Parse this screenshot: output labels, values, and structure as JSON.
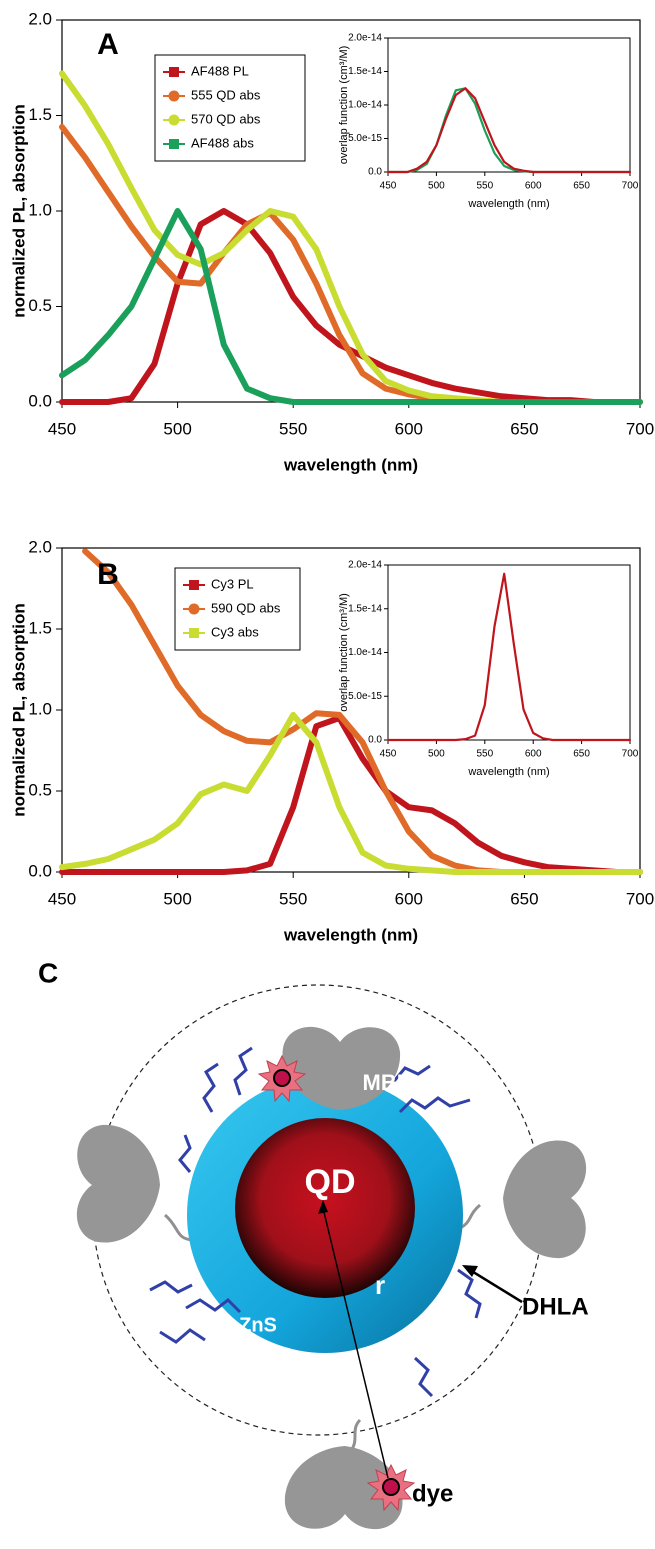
{
  "chart_data": [
    {
      "type": "line",
      "panel": "A",
      "xlabel": "wavelength (nm)",
      "ylabel": "normalized PL, absorption",
      "x": [
        450,
        460,
        470,
        480,
        490,
        500,
        510,
        520,
        530,
        540,
        550,
        560,
        570,
        580,
        590,
        600,
        610,
        620,
        630,
        640,
        650,
        660,
        670,
        680,
        690,
        700
      ],
      "xlim": [
        450,
        700
      ],
      "xticks": [
        450,
        500,
        550,
        600,
        650,
        700
      ],
      "ylim": [
        0,
        2
      ],
      "yticks": [
        {
          "value": 0,
          "label": "0.0"
        },
        0.5,
        {
          "value": 1,
          "label": "1.0"
        },
        1.5,
        {
          "value": 2,
          "label": "2.0"
        }
      ],
      "series": [
        {
          "name": "AF488 PL",
          "color": "#c0151c",
          "marker": "square",
          "values": [
            0,
            0,
            0,
            0.02,
            0.2,
            0.62,
            0.93,
            1.0,
            0.93,
            0.78,
            0.55,
            0.4,
            0.3,
            0.24,
            0.18,
            0.14,
            0.1,
            0.07,
            0.05,
            0.03,
            0.02,
            0.01,
            0.01,
            0,
            0,
            0
          ]
        },
        {
          "name": "555 QD abs",
          "color": "#e06a28",
          "marker": "circle",
          "values": [
            1.44,
            1.28,
            1.1,
            0.92,
            0.76,
            0.63,
            0.62,
            0.78,
            0.93,
            0.99,
            0.85,
            0.62,
            0.35,
            0.15,
            0.07,
            0.04,
            0.02,
            0.01,
            0,
            0,
            0,
            0,
            0,
            0,
            0,
            0
          ]
        },
        {
          "name": "570 QD abs",
          "color": "#c8dc32",
          "marker": "circle",
          "values": [
            1.72,
            1.55,
            1.35,
            1.12,
            0.9,
            0.77,
            0.72,
            0.78,
            0.9,
            1.0,
            0.97,
            0.8,
            0.5,
            0.25,
            0.11,
            0.06,
            0.03,
            0.02,
            0.01,
            0,
            0,
            0,
            0,
            0,
            0,
            0
          ]
        },
        {
          "name": "AF488 abs",
          "color": "#1aa05a",
          "marker": "square",
          "values": [
            0.14,
            0.22,
            0.35,
            0.5,
            0.75,
            1.0,
            0.8,
            0.3,
            0.07,
            0.02,
            0,
            0,
            0,
            0,
            0,
            0,
            0,
            0,
            0,
            0,
            0,
            0,
            0,
            0,
            0,
            0
          ]
        }
      ]
    },
    {
      "type": "line",
      "xlabel": "wavelength (nm)",
      "ylabel": "overlap function (cm³/M)",
      "x": [
        450,
        460,
        470,
        480,
        490,
        500,
        510,
        520,
        530,
        540,
        550,
        560,
        570,
        580,
        590,
        600,
        610,
        620,
        630,
        640,
        650,
        660,
        670,
        680,
        690,
        700
      ],
      "xlim": [
        450,
        700
      ],
      "xticks": [
        450,
        500,
        550,
        600,
        650,
        700
      ],
      "ylim": [
        0,
        2e-14
      ],
      "yticks": [
        {
          "value": 0,
          "label": "0.0"
        },
        {
          "value": 5e-15,
          "label": "5.0e-15"
        },
        {
          "value": 1e-14,
          "label": "1.0e-14"
        },
        {
          "value": 1.5e-14,
          "label": "1.5e-14"
        },
        {
          "value": 2e-14,
          "label": "2.0e-14"
        }
      ],
      "series": [
        {
          "color": "#1aa05a",
          "values": [
            0,
            0,
            0,
            3e-16,
            1.2e-15,
            4e-15,
            8.5e-15,
            1.22e-14,
            1.25e-14,
            1.02e-14,
            6.2e-15,
            2.8e-15,
            9e-16,
            3e-16,
            1e-16,
            0,
            0,
            0,
            0,
            0,
            0,
            0,
            0,
            0,
            0,
            0
          ]
        },
        {
          "color": "#c0151c",
          "values": [
            0,
            0,
            0,
            5e-16,
            1.5e-15,
            4e-15,
            8e-15,
            1.15e-14,
            1.25e-14,
            1.1e-14,
            7.5e-15,
            4e-15,
            1.5e-15,
            5e-16,
            2e-16,
            0,
            0,
            0,
            0,
            0,
            0,
            0,
            0,
            0,
            0,
            0
          ]
        }
      ]
    },
    {
      "type": "line",
      "panel": "B",
      "xlabel": "wavelength (nm)",
      "ylabel": "normalized PL, absorption",
      "x": [
        450,
        460,
        470,
        480,
        490,
        500,
        510,
        520,
        530,
        540,
        550,
        560,
        570,
        580,
        590,
        600,
        610,
        620,
        630,
        640,
        650,
        660,
        670,
        680,
        690,
        700
      ],
      "xlim": [
        450,
        700
      ],
      "xticks": [
        450,
        500,
        550,
        600,
        650,
        700
      ],
      "ylim": [
        0,
        2
      ],
      "yticks": [
        {
          "value": 0,
          "label": "0.0"
        },
        0.5,
        {
          "value": 1,
          "label": "1.0"
        },
        1.5,
        {
          "value": 2,
          "label": "2.0"
        }
      ],
      "series": [
        {
          "name": "Cy3 PL",
          "color": "#c0151c",
          "marker": "square",
          "values": [
            0,
            0,
            0,
            0,
            0,
            0,
            0,
            0,
            0.01,
            0.05,
            0.4,
            0.9,
            0.95,
            0.7,
            0.5,
            0.4,
            0.38,
            0.3,
            0.18,
            0.1,
            0.06,
            0.03,
            0.02,
            0.01,
            0,
            0
          ]
        },
        {
          "name": "590 QD abs",
          "color": "#e06a28",
          "marker": "circle",
          "values": [
            null,
            1.98,
            1.85,
            1.65,
            1.4,
            1.15,
            0.97,
            0.87,
            0.81,
            0.8,
            0.88,
            0.98,
            0.97,
            0.8,
            0.5,
            0.25,
            0.1,
            0.04,
            0.01,
            0,
            0,
            0,
            0,
            0,
            0,
            0
          ]
        },
        {
          "name": "Cy3 abs",
          "color": "#c8dc32",
          "marker": "square",
          "values": [
            0.03,
            0.05,
            0.08,
            0.14,
            0.2,
            0.3,
            0.48,
            0.54,
            0.5,
            0.72,
            0.97,
            0.8,
            0.4,
            0.12,
            0.04,
            0.02,
            0.01,
            0,
            0,
            0,
            0,
            0,
            0,
            0,
            0,
            0
          ]
        }
      ]
    },
    {
      "type": "line",
      "xlabel": "wavelength (nm)",
      "ylabel": "overlap function (cm³/M)",
      "x": [
        450,
        460,
        470,
        480,
        490,
        500,
        510,
        520,
        530,
        540,
        550,
        560,
        570,
        580,
        590,
        600,
        610,
        620,
        630,
        640,
        650,
        660,
        670,
        680,
        690,
        700
      ],
      "xlim": [
        450,
        700
      ],
      "xticks": [
        450,
        500,
        550,
        600,
        650,
        700
      ],
      "ylim": [
        0,
        2e-14
      ],
      "yticks": [
        {
          "value": 0,
          "label": "0.0"
        },
        {
          "value": 5e-15,
          "label": "5.0e-15"
        },
        {
          "value": 1e-14,
          "label": "1.0e-14"
        },
        {
          "value": 1.5e-14,
          "label": "1.5e-14"
        },
        {
          "value": 2e-14,
          "label": "2.0e-14"
        }
      ],
      "series": [
        {
          "color": "#c0151c",
          "values": [
            0,
            0,
            0,
            0,
            0,
            0,
            0,
            0,
            1e-16,
            5e-16,
            4e-15,
            1.3e-14,
            1.9e-14,
            1.1e-14,
            3.5e-15,
            8e-16,
            2e-16,
            0,
            0,
            0,
            0,
            0,
            0,
            0,
            0,
            0
          ]
        }
      ]
    }
  ],
  "diagram": {
    "panel": "C",
    "labels": {
      "mbp": "MBP",
      "qd": "QD",
      "r": "r",
      "zns": "ZnS",
      "dhla": "DHLA",
      "dye": "dye"
    }
  }
}
